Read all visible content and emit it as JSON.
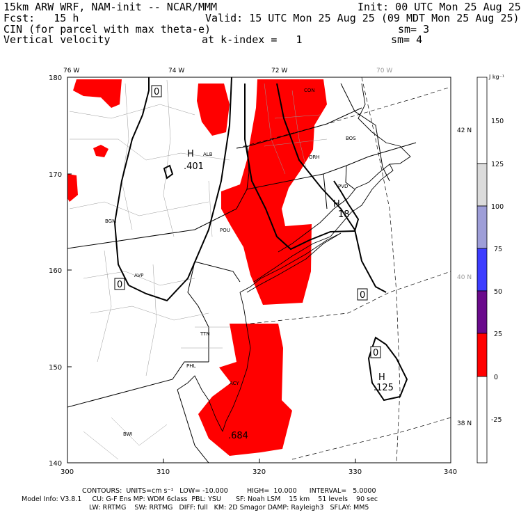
{
  "header": {
    "line1_left": "15km ARW WRF, NAM-init -- NCAR/MMM",
    "line1_right": "Init: 00 UTC Mon 25 Aug 25",
    "line2_left": "Fcst:   15 h",
    "line2_right": "Valid: 15 UTC Mon 25 Aug 25 (09 MDT Mon 25 Aug 25)",
    "line3_left": "CIN (for parcel with max theta-e)",
    "line3_right": "sm= 3",
    "line4_left": "Vertical velocity",
    "line4_mid": "at k-index =   1",
    "line4_right": "sm= 4"
  },
  "map": {
    "lon_labels": [
      "76 W",
      "74 W",
      "72 W",
      "70 W"
    ],
    "lat_labels": [
      "42 N",
      "40 N",
      "38 N"
    ],
    "x_ticks": [
      "300",
      "310",
      "320",
      "330",
      "340"
    ],
    "y_ticks": [
      "180",
      "170",
      "160",
      "150",
      "140"
    ],
    "cities": [
      "CON",
      "BOS",
      "ALB",
      "ORH",
      "PVD",
      "BGM",
      "POU",
      "AVP",
      "TTN",
      "PHL",
      "ACY",
      "BWI"
    ],
    "centers": [
      {
        "letter": "H",
        "value": ".401"
      },
      {
        "letter": "H",
        "value": "18"
      },
      {
        "letter": "H",
        "value": ".125"
      },
      {
        "letter": "",
        "value": ".684"
      }
    ],
    "zero_labels": [
      "0",
      "0",
      "0",
      "0"
    ]
  },
  "colorbar": {
    "unit": "J kg⁻¹",
    "labels": [
      "150",
      "125",
      "100",
      "75",
      "50",
      "25",
      "0",
      "-25"
    ],
    "colors": [
      "#ffffff",
      "#dcdcdc",
      "#9e9ed8",
      "#3c3cff",
      "#6a0a8c",
      "#ff0000",
      "#ffffff"
    ]
  },
  "footer": {
    "contours": "CONTOURS:  UNITS=cm s⁻¹   LOW= -10.000         HIGH=  10.000      INTERVAL=   5.0000",
    "model_info": "Model Info: V3.8.1     CU: G-F Ens MP: WDM 6class  PBL: YSU       SF: Noah LSM    15 km    51 levels    90 sec",
    "model_info2": "LW: RRTMG    SW: RRTMG   DIFF: full   KM: 2D Smagor DAMP: Rayleigh3   SFLAY: MM5"
  }
}
